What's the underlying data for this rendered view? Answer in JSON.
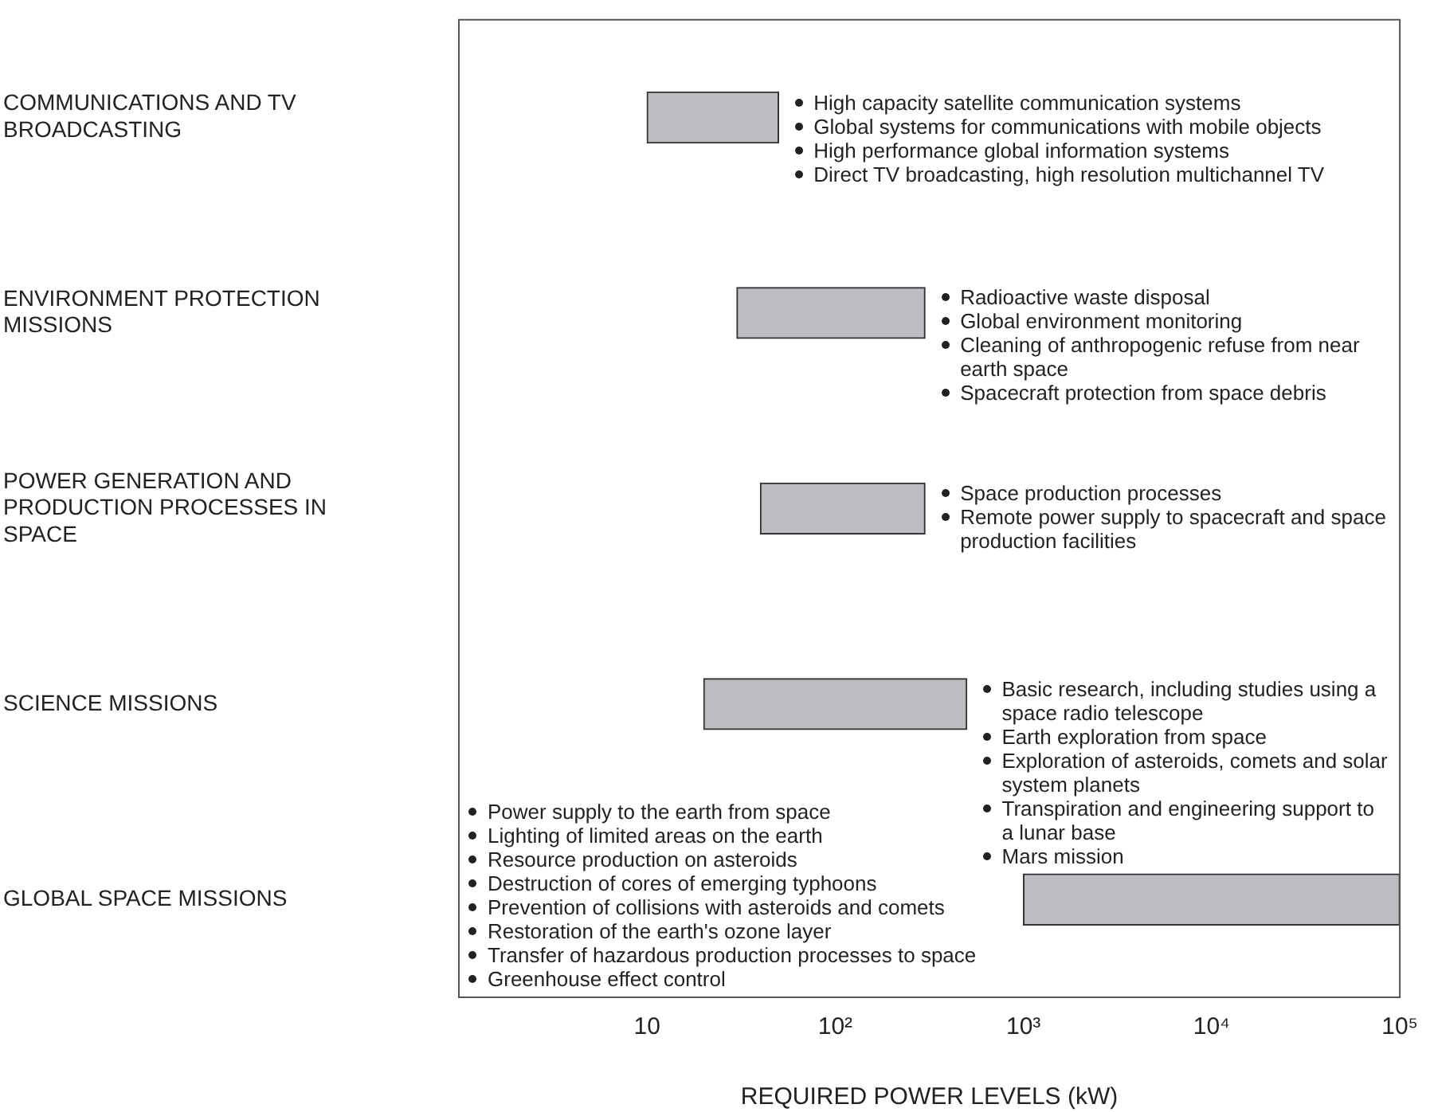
{
  "chart_data": {
    "type": "bar",
    "orientation": "horizontal",
    "xlabel": "REQUIRED POWER LEVELS (kW)",
    "log": "x",
    "categories": [
      "COMMUNICATIONS AND TV BROADCASTING",
      "ENVIRONMENT PROTECTION MISSIONS",
      "POWER GENERATION AND PRODUCTION PROCESSES IN SPACE",
      "SCIENCE MISSIONS",
      "GLOBAL SPACE MISSIONS"
    ],
    "base": [
      10,
      30,
      40,
      20,
      1000
    ],
    "values": [
      40,
      270,
      260,
      480,
      99000
    ],
    "color": "#bcbdc1",
    "xlim": [
      1,
      100000
    ],
    "xticks": [
      10,
      {
        "value": 100,
        "label": "10²"
      },
      {
        "value": 1000,
        "label": "10³"
      },
      {
        "value": 10000,
        "label": "10⁴"
      },
      {
        "value": 100000,
        "label": "10⁵"
      }
    ],
    "grid": false,
    "legend": false,
    "annotations": [
      "High capacity satellite communication systems",
      "Global systems for communications with mobile objects",
      "High performance global information systems",
      "Direct TV broadcasting, high resolution multichannel TV",
      "Radioactive waste disposal",
      "Global environment monitoring",
      "Cleaning of anthropogenic refuse from near earth space",
      "Spacecraft protection from space debris",
      "Space production processes",
      "Remote power supply to spacecraft and space production facilities",
      "Basic research, including studies using a space radio telescope",
      "Earth exploration from space",
      "Exploration of asteroids, comets and solar system planets",
      "Transpiration and engineering support to a lunar base",
      "Mars mission",
      "Power supply to the earth from space",
      "Lighting of limited areas on the earth",
      "Resource production on asteroids",
      "Destruction of cores of emerging typhoons",
      "Prevention of collisions with asteroids and comets",
      "Restoration of the earth's ozone layer",
      "Transfer of hazardous production processes to space",
      "Greenhouse effect control"
    ]
  }
}
